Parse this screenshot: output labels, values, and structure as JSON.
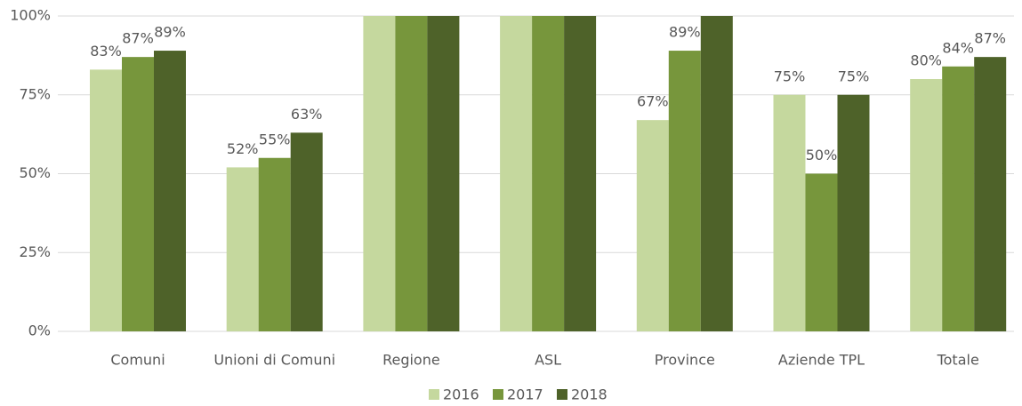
{
  "chart_data": {
    "type": "bar",
    "categories": [
      "Comuni",
      "Unioni di Comuni",
      "Regione",
      "ASL",
      "Province",
      "Aziende TPL",
      "Totale"
    ],
    "series": [
      {
        "name": "2016",
        "color": "#c5d89e",
        "values": [
          83,
          52,
          100,
          100,
          67,
          75,
          80
        ],
        "value_labels": [
          "83%",
          "52%",
          null,
          null,
          "67%",
          "75%",
          "80%"
        ]
      },
      {
        "name": "2017",
        "color": "#77963c",
        "values": [
          87,
          55,
          100,
          100,
          89,
          50,
          84
        ],
        "value_labels": [
          "87%",
          "55%",
          null,
          null,
          "89%",
          "50%",
          "84%"
        ]
      },
      {
        "name": "2018",
        "color": "#4e6229",
        "values": [
          89,
          63,
          100,
          100,
          100,
          75,
          87
        ],
        "value_labels": [
          "89%",
          "63%",
          null,
          null,
          null,
          "75%",
          "87%"
        ]
      }
    ],
    "ylim": [
      0,
      100
    ],
    "yticks": [
      {
        "value": 0,
        "label": "0%"
      },
      {
        "value": 25,
        "label": "25%"
      },
      {
        "value": 50,
        "label": "50%"
      },
      {
        "value": 75,
        "label": "75%"
      },
      {
        "value": 100,
        "label": "100%"
      }
    ],
    "grid": true,
    "legend": "bottom"
  }
}
